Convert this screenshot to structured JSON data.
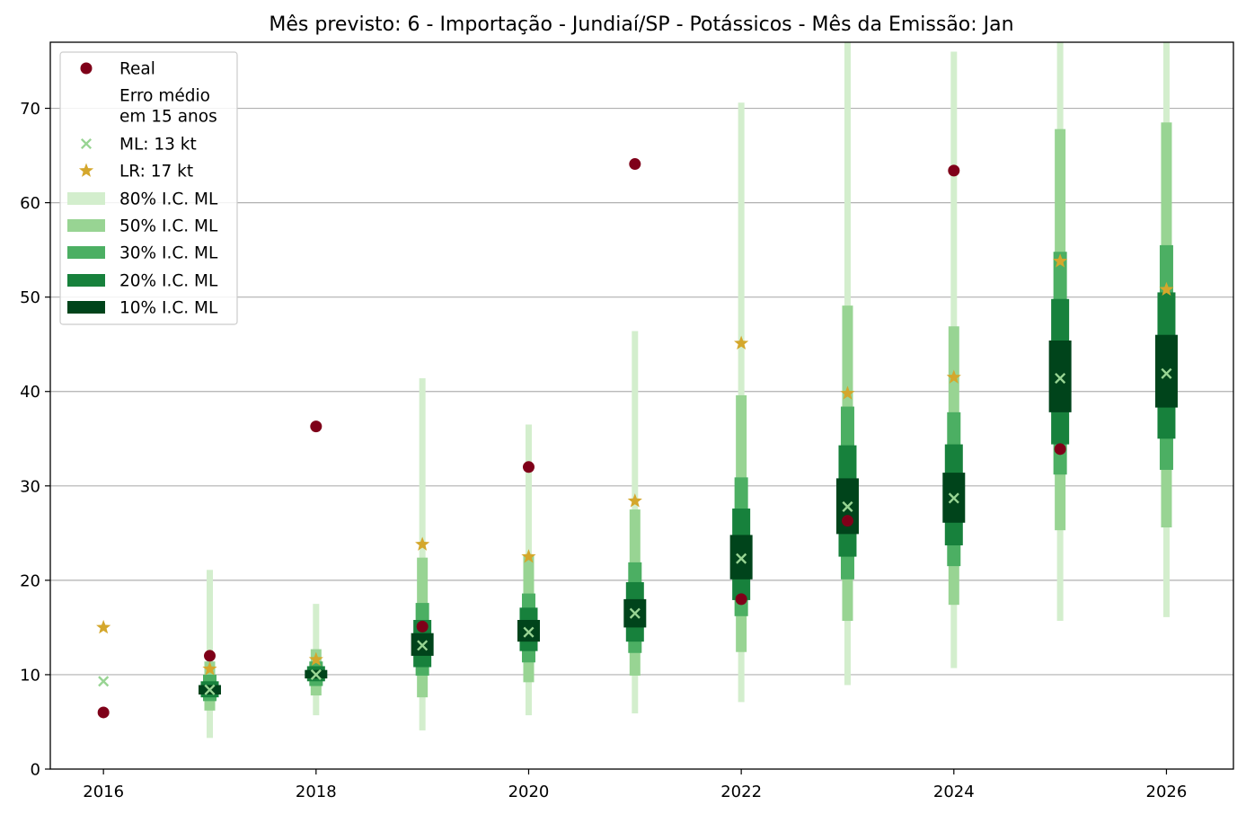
{
  "chart_data": {
    "type": "scatter",
    "title": "Mês previsto: 6 - Importação - Jundiaí/SP - Potássicos - Mês da Emissão: Jan",
    "xlabel": "",
    "ylabel": "",
    "xlim": [
      2015.5,
      2026.63
    ],
    "ylim": [
      0,
      77
    ],
    "x_ticks": [
      2016,
      2018,
      2020,
      2022,
      2024,
      2026
    ],
    "y_ticks": [
      0,
      10,
      20,
      30,
      40,
      50,
      60,
      70
    ],
    "grid": "y",
    "legend_position": "top-left",
    "colors": {
      "real": "#7f0019",
      "ml": "#98d493",
      "lr": "#d4a72c",
      "ci80": "#d3eecd",
      "ci50": "#98d493",
      "ci30": "#4caf63",
      "ci20": "#17813c",
      "ci10": "#00441b"
    },
    "legend": [
      {
        "label": "Real",
        "marker": "dot"
      },
      {
        "label": "Erro médio",
        "marker": "none"
      },
      {
        "label": "em 15 anos",
        "marker": "none"
      },
      {
        "label": "ML: 13 kt",
        "marker": "x"
      },
      {
        "label": "LR: 17 kt",
        "marker": "star"
      },
      {
        "label": "80% I.C. ML",
        "marker": "ci80"
      },
      {
        "label": "50% I.C. ML",
        "marker": "ci50"
      },
      {
        "label": "30% I.C. ML",
        "marker": "ci30"
      },
      {
        "label": "20% I.C. ML",
        "marker": "ci20"
      },
      {
        "label": "10% I.C. ML",
        "marker": "ci10"
      }
    ],
    "series": [
      {
        "name": "Real",
        "x": [
          2016,
          2017,
          2018,
          2019,
          2020,
          2021,
          2022,
          2023,
          2024,
          2025
        ],
        "values": [
          6.0,
          12.0,
          36.3,
          15.1,
          32.0,
          64.1,
          18.0,
          26.3,
          63.4,
          33.9
        ]
      },
      {
        "name": "ML: 13 kt",
        "x": [
          2016,
          2017,
          2018,
          2019,
          2020,
          2021,
          2022,
          2023,
          2024,
          2025,
          2026
        ],
        "values": [
          9.3,
          8.4,
          10.0,
          13.1,
          14.5,
          16.5,
          22.3,
          27.8,
          28.7,
          41.4,
          41.9
        ]
      },
      {
        "name": "LR: 17 kt",
        "x": [
          2016,
          2017,
          2018,
          2019,
          2020,
          2021,
          2022,
          2023,
          2024,
          2025,
          2026
        ],
        "values": [
          15.0,
          10.6,
          11.6,
          23.8,
          22.5,
          28.4,
          45.1,
          39.8,
          41.5,
          53.8,
          50.8
        ]
      }
    ],
    "intervals": {
      "x": [
        2017,
        2018,
        2019,
        2020,
        2021,
        2022,
        2023,
        2024,
        2025,
        2026
      ],
      "ci80": [
        [
          3.3,
          21.1
        ],
        [
          5.7,
          17.5
        ],
        [
          4.1,
          41.4
        ],
        [
          5.7,
          36.5
        ],
        [
          5.9,
          46.4
        ],
        [
          7.1,
          70.6
        ],
        [
          8.9,
          77.0
        ],
        [
          10.7,
          76.0
        ],
        [
          15.7,
          77.0
        ],
        [
          16.1,
          77.0
        ]
      ],
      "ci50": [
        [
          6.2,
          11.4
        ],
        [
          7.8,
          12.7
        ],
        [
          7.6,
          22.4
        ],
        [
          9.2,
          22.6
        ],
        [
          9.9,
          27.5
        ],
        [
          12.4,
          39.6
        ],
        [
          15.7,
          49.1
        ],
        [
          17.4,
          46.9
        ],
        [
          25.3,
          67.8
        ],
        [
          25.6,
          68.5
        ]
      ],
      "ci30": [
        [
          7.2,
          10.0
        ],
        [
          8.8,
          11.4
        ],
        [
          9.9,
          17.6
        ],
        [
          11.3,
          18.6
        ],
        [
          12.3,
          21.9
        ],
        [
          16.2,
          30.9
        ],
        [
          20.1,
          38.4
        ],
        [
          21.5,
          37.8
        ],
        [
          31.2,
          54.8
        ],
        [
          31.7,
          55.5
        ]
      ],
      "ci20": [
        [
          7.6,
          9.3
        ],
        [
          9.3,
          10.9
        ],
        [
          10.8,
          15.8
        ],
        [
          12.5,
          17.1
        ],
        [
          13.5,
          19.8
        ],
        [
          17.9,
          27.6
        ],
        [
          22.5,
          34.3
        ],
        [
          23.7,
          34.4
        ],
        [
          34.4,
          49.8
        ],
        [
          35.0,
          50.5
        ]
      ],
      "ci10": [
        [
          7.9,
          8.9
        ],
        [
          9.6,
          10.5
        ],
        [
          12.0,
          14.4
        ],
        [
          13.5,
          15.8
        ],
        [
          15.0,
          18.0
        ],
        [
          20.1,
          24.8
        ],
        [
          24.9,
          30.8
        ],
        [
          26.1,
          31.4
        ],
        [
          37.8,
          45.4
        ],
        [
          38.3,
          46.0
        ]
      ]
    }
  }
}
